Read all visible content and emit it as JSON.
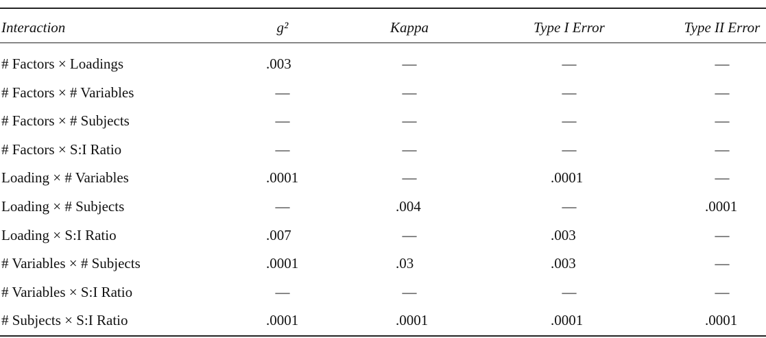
{
  "table": {
    "header": [
      "Interaction",
      "g²",
      "Kappa",
      "Type I Error",
      "Type II Error"
    ],
    "rows": [
      [
        "# Factors × Loadings",
        ".003",
        "—",
        "—",
        "—"
      ],
      [
        "# Factors × # Variables",
        "—",
        "—",
        "—",
        "—"
      ],
      [
        "# Factors × # Subjects",
        "—",
        "—",
        "—",
        "—"
      ],
      [
        "# Factors × S:I Ratio",
        "—",
        "—",
        "—",
        "—"
      ],
      [
        "Loading × # Variables",
        ".0001",
        "—",
        ".0001",
        "—"
      ],
      [
        "Loading × # Subjects",
        "—",
        ".004",
        "—",
        ".0001"
      ],
      [
        "Loading × S:I Ratio",
        ".007",
        "—",
        ".003",
        "—"
      ],
      [
        "# Variables × # Subjects",
        ".0001",
        ".03",
        ".003",
        "—"
      ],
      [
        "# Variables × S:I Ratio",
        "—",
        "—",
        "—",
        "—"
      ],
      [
        "# Subjects × S:I Ratio",
        ".0001",
        ".0001",
        ".0001",
        ".0001"
      ]
    ]
  }
}
